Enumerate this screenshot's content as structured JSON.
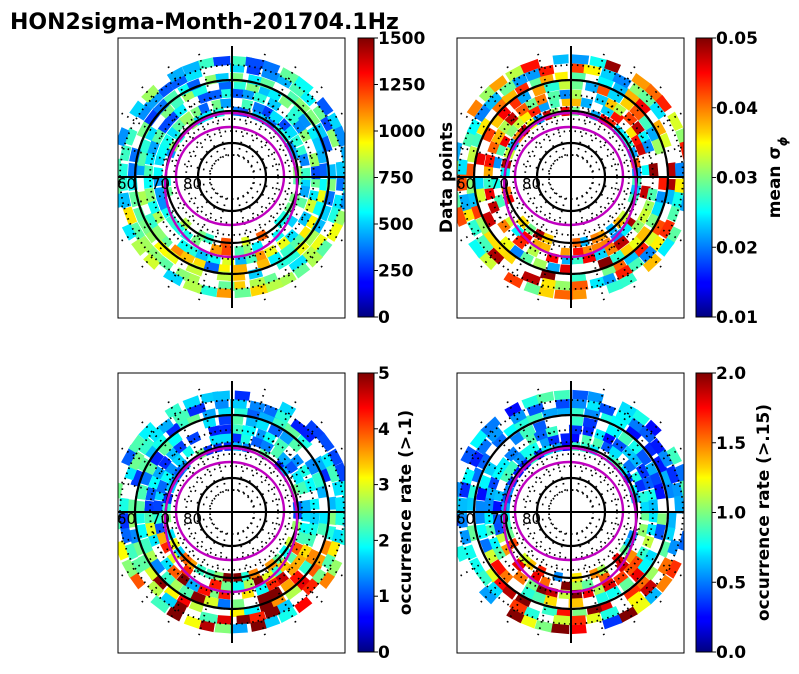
{
  "chart_data": {
    "type": "heatmap",
    "title": "HON2sigma-Month-201704.1Hz",
    "panels": [
      {
        "id": "data-points",
        "colorbar": {
          "label": "Data points",
          "range": [
            0,
            1500
          ],
          "ticks": [
            "1500",
            "1250",
            "1000",
            "750",
            "500",
            "250",
            "0"
          ],
          "tick_values": [
            1500,
            1250,
            1000,
            750,
            500,
            250,
            0
          ]
        },
        "lat_labels": [
          "60",
          "70",
          "80"
        ],
        "seed": 11,
        "value_level": 0.18,
        "oval_boost": 0.25
      },
      {
        "id": "mean-sigma-phi",
        "colorbar": {
          "label": "mean σ",
          "label_sub": "ϕ",
          "range": [
            0.01,
            0.05
          ],
          "ticks": [
            "0.05",
            "0.04",
            "0.03",
            "0.02",
            "0.01"
          ],
          "tick_values": [
            0.05,
            0.04,
            0.03,
            0.02,
            0.01
          ]
        },
        "lat_labels": [
          "60",
          "70",
          "80"
        ],
        "seed": 23,
        "value_level": 0.45,
        "oval_boost": 0.45
      },
      {
        "id": "occurrence-rate-01",
        "colorbar": {
          "label": "occurrence rate (>.1)",
          "range": [
            0,
            5
          ],
          "ticks": [
            "5",
            "4",
            "3",
            "2",
            "1",
            "0"
          ],
          "tick_values": [
            5,
            4,
            3,
            2,
            1,
            0
          ]
        },
        "lat_labels": [
          "60",
          "70",
          "80"
        ],
        "seed": 37,
        "value_level": 0.15,
        "oval_boost": 0.55
      },
      {
        "id": "occurrence-rate-015",
        "colorbar": {
          "label": "occurrence rate (>.15)",
          "range": [
            0,
            2
          ],
          "ticks": [
            "2.0",
            "1.5",
            "1.0",
            "0.5",
            "0.0"
          ],
          "tick_values": [
            2.0,
            1.5,
            1.0,
            0.5,
            0.0
          ]
        },
        "lat_labels": [
          "60",
          "70",
          "80"
        ],
        "seed": 53,
        "value_level": 0.12,
        "oval_boost": 0.6
      }
    ],
    "grid": {
      "mlat_circles": [
        60,
        70,
        80
      ],
      "colormap": "jet"
    }
  }
}
